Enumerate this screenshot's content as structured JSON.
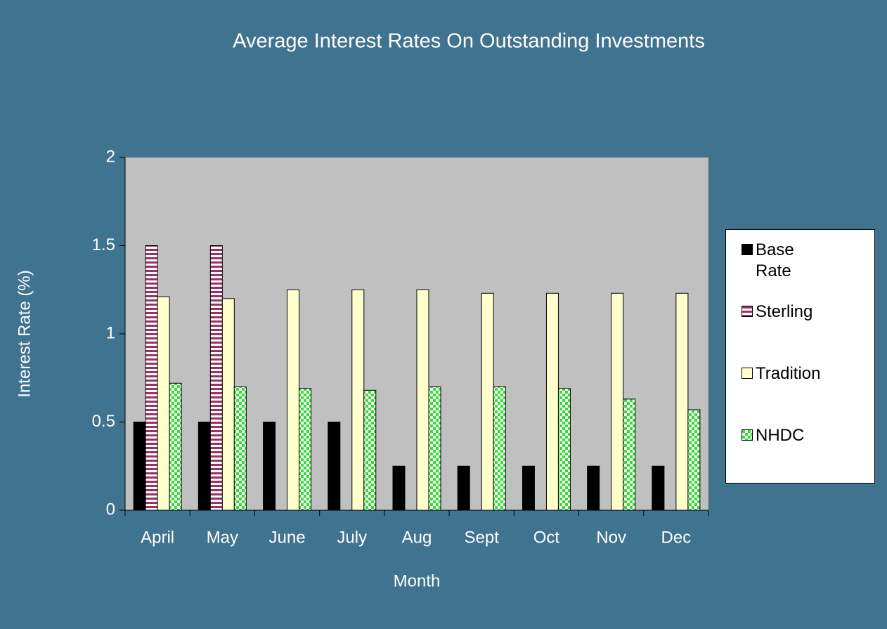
{
  "chart_data": {
    "type": "bar",
    "title": "Average Interest Rates On Outstanding Investments",
    "x_label": "Month",
    "y_label": "Interest Rate (%)",
    "categories": [
      "April",
      "May",
      "June",
      "July",
      "Aug",
      "Sept",
      "Oct",
      "Nov",
      "Dec"
    ],
    "series": [
      {
        "name": "Base Rate",
        "color": "#000000",
        "pattern": "solid",
        "values": [
          0.5,
          0.5,
          0.5,
          0.5,
          0.25,
          0.25,
          0.25,
          0.25,
          0.25
        ]
      },
      {
        "name": "Sterling",
        "color": "#993366",
        "pattern": "horizontal-stripes",
        "values": [
          1.5,
          1.5,
          null,
          null,
          null,
          null,
          null,
          null,
          null
        ]
      },
      {
        "name": "Tradition",
        "color": "#ffffcc",
        "pattern": "solid",
        "values": [
          1.21,
          1.2,
          1.25,
          1.25,
          1.25,
          1.23,
          1.23,
          1.23,
          1.23
        ]
      },
      {
        "name": "NHDC",
        "color": "#33dd33",
        "pattern": "checker",
        "values": [
          0.72,
          0.7,
          0.69,
          0.68,
          0.7,
          0.7,
          0.69,
          0.63,
          0.57
        ]
      }
    ],
    "ylim": [
      0,
      2
    ],
    "yticks": [
      0,
      0.5,
      1,
      1.5,
      2
    ],
    "grid": false,
    "legend": "right"
  }
}
